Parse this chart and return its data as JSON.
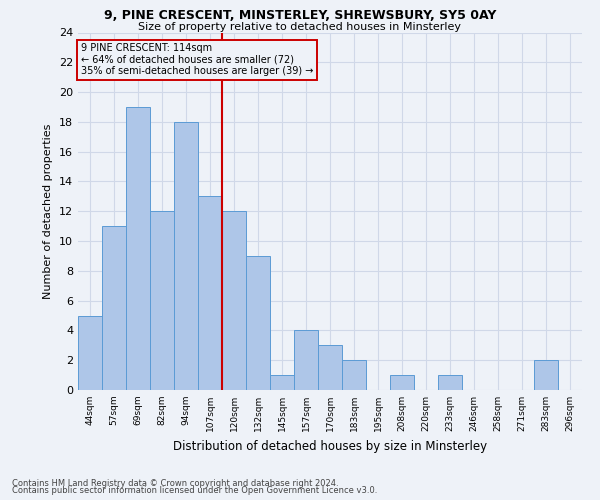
{
  "title1": "9, PINE CRESCENT, MINSTERLEY, SHREWSBURY, SY5 0AY",
  "title2": "Size of property relative to detached houses in Minsterley",
  "xlabel": "Distribution of detached houses by size in Minsterley",
  "ylabel": "Number of detached properties",
  "categories": [
    "44sqm",
    "57sqm",
    "69sqm",
    "82sqm",
    "94sqm",
    "107sqm",
    "120sqm",
    "132sqm",
    "145sqm",
    "157sqm",
    "170sqm",
    "183sqm",
    "195sqm",
    "208sqm",
    "220sqm",
    "233sqm",
    "246sqm",
    "258sqm",
    "271sqm",
    "283sqm",
    "296sqm"
  ],
  "values": [
    5,
    11,
    19,
    12,
    18,
    13,
    12,
    9,
    1,
    4,
    3,
    2,
    0,
    1,
    0,
    1,
    0,
    0,
    0,
    2,
    0
  ],
  "bar_color": "#aec6e8",
  "bar_edge_color": "#5b9bd5",
  "grid_color": "#d0d8e8",
  "vline_x": 6.0,
  "vline_color": "#cc0000",
  "annotation_line1": "9 PINE CRESCENT: 114sqm",
  "annotation_line2": "← 64% of detached houses are smaller (72)",
  "annotation_line3": "35% of semi-detached houses are larger (39) →",
  "annotation_box_color": "#cc0000",
  "ylim": [
    0,
    24
  ],
  "yticks": [
    0,
    2,
    4,
    6,
    8,
    10,
    12,
    14,
    16,
    18,
    20,
    22,
    24
  ],
  "footnote1": "Contains HM Land Registry data © Crown copyright and database right 2024.",
  "footnote2": "Contains public sector information licensed under the Open Government Licence v3.0.",
  "bg_color": "#eef2f8"
}
